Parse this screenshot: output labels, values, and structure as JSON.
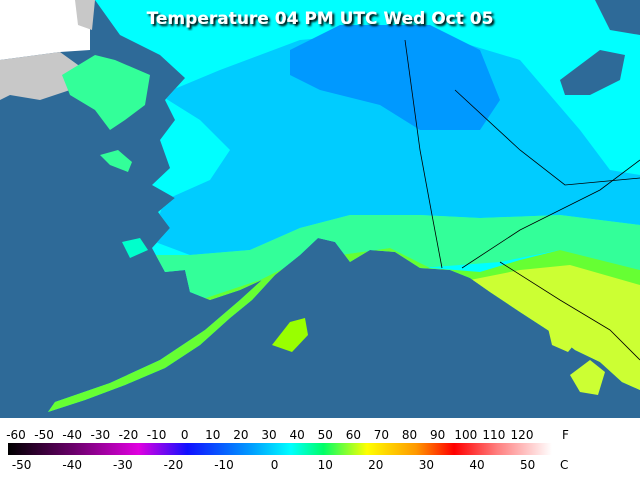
{
  "title": "Temperature 04 PM UTC Wed Oct 05",
  "legend": {
    "fahrenheit_unit": "F",
    "celsius_unit": "C",
    "fahrenheit_ticks": [
      -60,
      -50,
      -40,
      -30,
      -20,
      -10,
      0,
      10,
      20,
      30,
      40,
      50,
      60,
      70,
      80,
      90,
      100,
      110,
      120
    ],
    "celsius_ticks": [
      -50,
      -40,
      -30,
      -20,
      -10,
      0,
      10,
      20,
      30,
      40,
      50
    ]
  }
}
